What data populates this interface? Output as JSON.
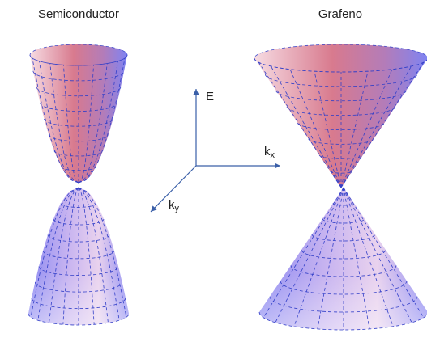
{
  "panels": [
    {
      "title": "Semiconductor"
    },
    {
      "title": "Grafeno"
    }
  ],
  "axes": {
    "e": "E",
    "kx": {
      "base": "k",
      "sub": "x"
    },
    "ky": {
      "base": "k",
      "sub": "y"
    }
  }
}
